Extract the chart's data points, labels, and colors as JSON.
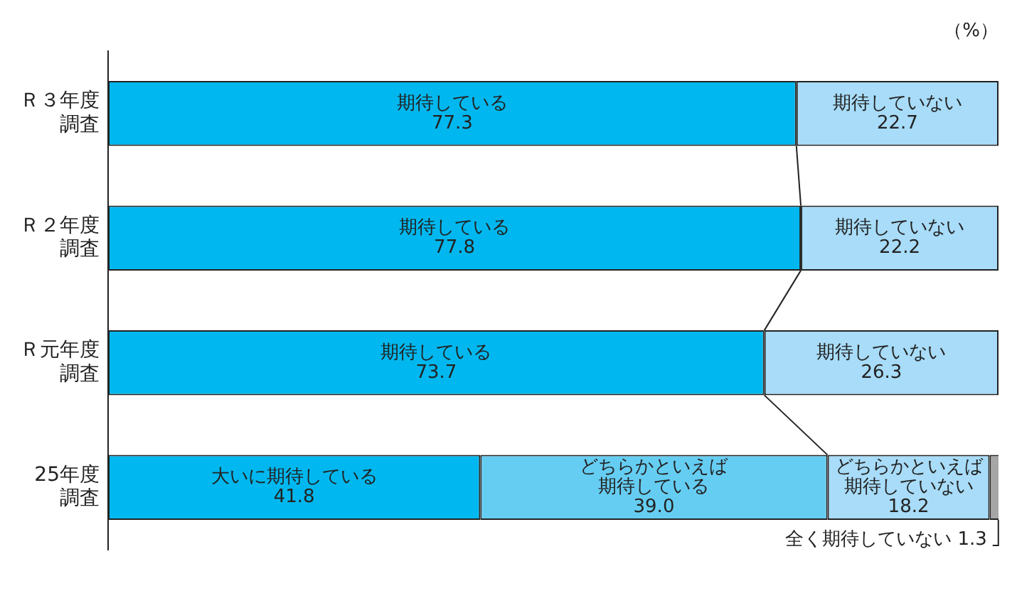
{
  "chart_data": {
    "type": "bar",
    "orientation": "horizontal",
    "stacked": true,
    "categories": [
      "Ｒ３年度調査",
      "Ｒ２年度調査",
      "Ｒ元年度調査",
      "25年度調査"
    ],
    "series": [
      {
        "name": "期待している",
        "color": "#00b8ef",
        "values": [
          77.3,
          77.8,
          73.7,
          null
        ],
        "value_labels": [
          "77.3",
          "77.8",
          "73.7",
          null
        ]
      },
      {
        "name": "期待していない",
        "color": "#a8dcf8",
        "values": [
          22.7,
          22.2,
          26.3,
          null
        ],
        "value_labels": [
          "22.7",
          "22.2",
          "26.3",
          null
        ]
      },
      {
        "name": "大いに期待している",
        "color": "#00b8ef",
        "values": [
          null,
          null,
          null,
          41.8
        ],
        "value_labels": [
          null,
          null,
          null,
          "41.8"
        ]
      },
      {
        "name": "どちらかといえば期待している",
        "color": "#66cdf2",
        "values": [
          null,
          null,
          null,
          39.0
        ],
        "value_labels": [
          null,
          null,
          null,
          "39.0"
        ]
      },
      {
        "name": "どちらかといえば期待していない",
        "color": "#a8dcf8",
        "values": [
          null,
          null,
          null,
          18.2
        ],
        "value_labels": [
          null,
          null,
          null,
          "18.2"
        ]
      },
      {
        "name": "全く期待していない",
        "color": "#a6a6a6",
        "values": [
          null,
          null,
          null,
          1.3
        ],
        "value_labels": [
          null,
          null,
          null,
          "1.3"
        ]
      }
    ],
    "xlim": [
      0,
      100
    ],
    "tick_labels": "y",
    "grid": false,
    "legend": false,
    "annotations": [
      "（%）"
    ]
  }
}
